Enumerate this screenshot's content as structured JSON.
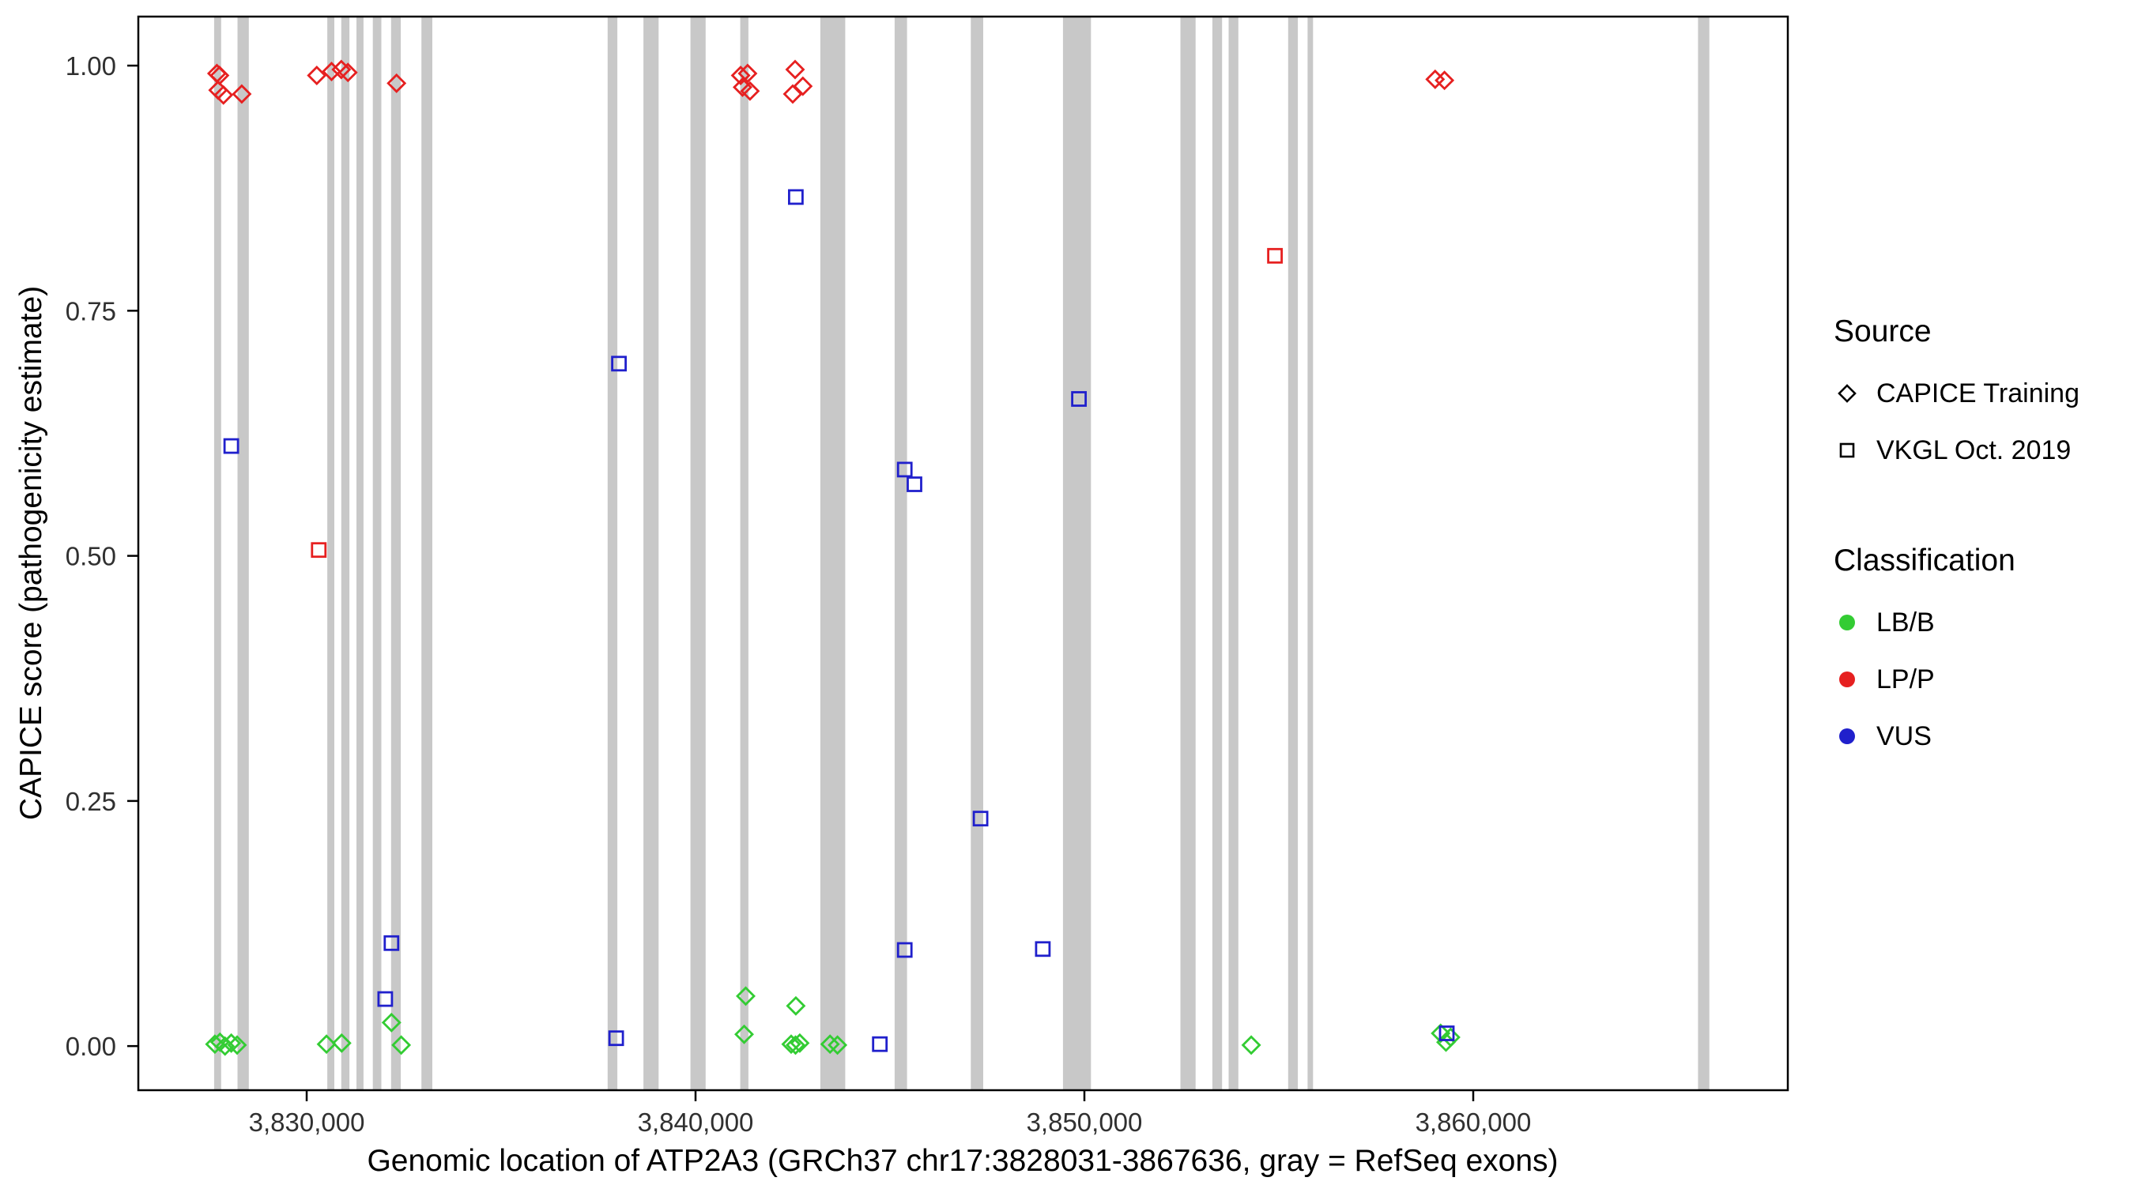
{
  "legend": {
    "source": {
      "title": "Source",
      "items": [
        {
          "label": "CAPICE Training",
          "marker": "diamond"
        },
        {
          "label": "VKGL Oct. 2019",
          "marker": "square"
        }
      ]
    },
    "classification": {
      "title": "Classification",
      "items": [
        {
          "label": "LB/B",
          "color_key": "lbb"
        },
        {
          "label": "LP/P",
          "color_key": "lpp"
        },
        {
          "label": "VUS",
          "color_key": "vus"
        }
      ]
    }
  },
  "chart_data": {
    "type": "scatter",
    "title": "",
    "xlabel": "Genomic location of ATP2A3 (GRCh37 chr17:3828031-3867636, gray = RefSeq exons)",
    "ylabel": "CAPICE score (pathogenicity estimate)",
    "xlim": [
      3825670,
      3868090
    ],
    "ylim": [
      -0.045,
      1.05
    ],
    "grid": false,
    "legend_position": "right",
    "x_ticks": [
      {
        "value": 3830000,
        "label": "3,830,000"
      },
      {
        "value": 3840000,
        "label": "3,840,000"
      },
      {
        "value": 3850000,
        "label": "3,850,000"
      },
      {
        "value": 3860000,
        "label": "3,860,000"
      }
    ],
    "y_ticks": [
      {
        "value": 0.0,
        "label": "0.00"
      },
      {
        "value": 0.25,
        "label": "0.25"
      },
      {
        "value": 0.5,
        "label": "0.50"
      },
      {
        "value": 0.75,
        "label": "0.75"
      },
      {
        "value": 1.0,
        "label": "1.00"
      }
    ],
    "colors": {
      "lbb": "#33CC33",
      "lpp": "#E62020",
      "vus": "#2020CC",
      "exon": "#C8C8C8",
      "axis": "#000000"
    },
    "exons": [
      [
        3827620,
        3827800
      ],
      [
        3828220,
        3828510
      ],
      [
        3830530,
        3830710
      ],
      [
        3830890,
        3831100
      ],
      [
        3831280,
        3831460
      ],
      [
        3831700,
        3831920
      ],
      [
        3832170,
        3832420
      ],
      [
        3832950,
        3833230
      ],
      [
        3837740,
        3837990
      ],
      [
        3838660,
        3839050
      ],
      [
        3839870,
        3840260
      ],
      [
        3841150,
        3841360
      ],
      [
        3843210,
        3843850
      ],
      [
        3845120,
        3845440
      ],
      [
        3847080,
        3847400
      ],
      [
        3849450,
        3850170
      ],
      [
        3852470,
        3852860
      ],
      [
        3853290,
        3853540
      ],
      [
        3853710,
        3853960
      ],
      [
        3855240,
        3855490
      ],
      [
        3855740,
        3855880
      ],
      [
        3865780,
        3866070
      ]
    ],
    "series": [
      {
        "name": "CAPICE Training / LP-P",
        "source": "CAPICE Training",
        "classification": "LP/P",
        "marker": "diamond",
        "color_key": "lpp",
        "points": [
          [
            3827690,
            0.992
          ],
          [
            3827760,
            0.99
          ],
          [
            3827720,
            0.975
          ],
          [
            3827860,
            0.97
          ],
          [
            3828330,
            0.971
          ],
          [
            3830260,
            0.99
          ],
          [
            3830640,
            0.994
          ],
          [
            3830890,
            0.996
          ],
          [
            3831060,
            0.993
          ],
          [
            3832310,
            0.982
          ],
          [
            3841160,
            0.99
          ],
          [
            3841340,
            0.992
          ],
          [
            3841210,
            0.978
          ],
          [
            3841400,
            0.974
          ],
          [
            3842560,
            0.996
          ],
          [
            3842760,
            0.979
          ],
          [
            3842500,
            0.971
          ],
          [
            3859020,
            0.986
          ],
          [
            3859260,
            0.985
          ]
        ]
      },
      {
        "name": "CAPICE Training / LB-B",
        "source": "CAPICE Training",
        "classification": "LB/B",
        "marker": "diamond",
        "color_key": "lbb",
        "points": [
          [
            3827640,
            0.002
          ],
          [
            3827770,
            0.004
          ],
          [
            3827900,
            0.0
          ],
          [
            3828060,
            0.003
          ],
          [
            3828210,
            0.001
          ],
          [
            3830510,
            0.002
          ],
          [
            3830900,
            0.003
          ],
          [
            3832180,
            0.024
          ],
          [
            3832430,
            0.001
          ],
          [
            3841290,
            0.051
          ],
          [
            3841250,
            0.012
          ],
          [
            3842580,
            0.041
          ],
          [
            3842460,
            0.002
          ],
          [
            3842570,
            0.001
          ],
          [
            3842680,
            0.003
          ],
          [
            3843460,
            0.002
          ],
          [
            3843650,
            0.001
          ],
          [
            3854290,
            0.001
          ],
          [
            3859160,
            0.013
          ],
          [
            3859300,
            0.004
          ],
          [
            3859420,
            0.009
          ]
        ]
      },
      {
        "name": "VKGL Oct. 2019 / VUS",
        "source": "VKGL Oct. 2019",
        "classification": "VUS",
        "marker": "square",
        "color_key": "vus",
        "points": [
          [
            3828060,
            0.612
          ],
          [
            3832020,
            0.048
          ],
          [
            3832180,
            0.105
          ],
          [
            3837960,
            0.008
          ],
          [
            3838030,
            0.696
          ],
          [
            3842580,
            0.866
          ],
          [
            3844740,
            0.002
          ],
          [
            3845380,
            0.588
          ],
          [
            3845630,
            0.573
          ],
          [
            3845380,
            0.098
          ],
          [
            3847330,
            0.232
          ],
          [
            3848930,
            0.099
          ],
          [
            3849860,
            0.66
          ],
          [
            3859320,
            0.013
          ]
        ]
      },
      {
        "name": "VKGL Oct. 2019 / LP-P",
        "source": "VKGL Oct. 2019",
        "classification": "LP/P",
        "marker": "square",
        "color_key": "lpp",
        "points": [
          [
            3830310,
            0.506
          ],
          [
            3854900,
            0.806
          ]
        ]
      }
    ]
  }
}
